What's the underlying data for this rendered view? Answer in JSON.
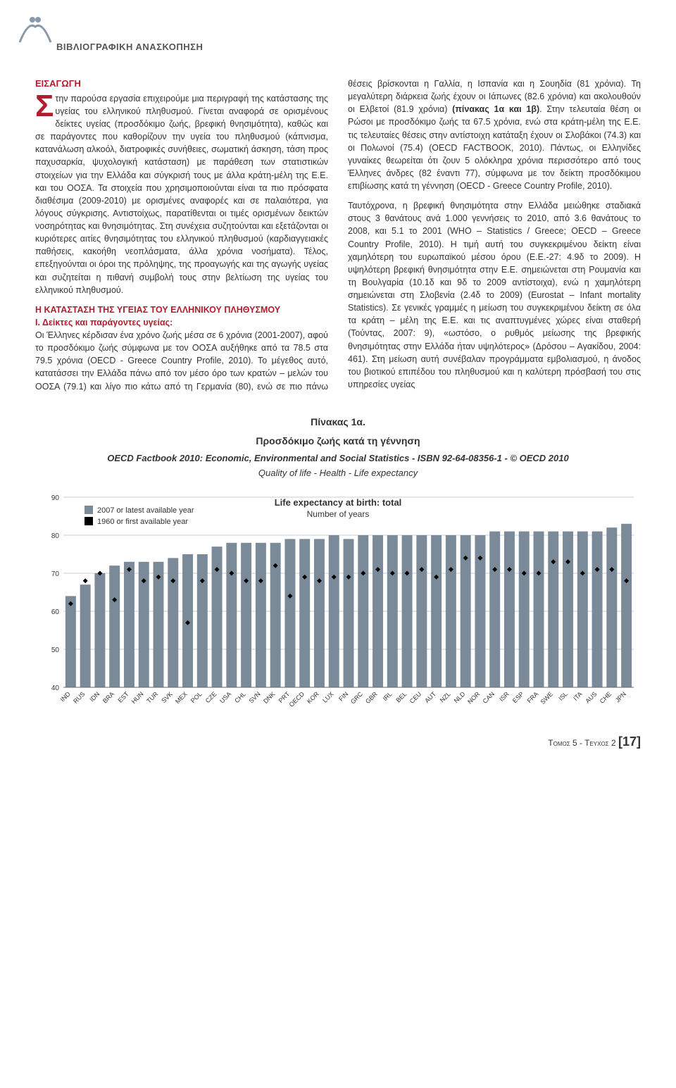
{
  "header": {
    "section_label": "ΒΙΒΛΙΟΓΡΑΦΙΚΗ ΑΝΑΣΚΟΠΗΣΗ"
  },
  "content": {
    "intro_heading": "ΕΙΣΑΓΩΓΗ",
    "para1": "την παρούσα εργασία επιχειρούμε μια περιγραφή της κατάστασης της υγείας του ελληνικού πληθυσμού. Γίνεται αναφορά σε ορισμένους δείκτες υγείας (προσδόκιμο ζωής, βρεφική θνησιμότητα), καθώς και σε παράγοντες που καθορίζουν την υγεία του πληθυσμού (κάπνισμα, κατανάλωση αλκοόλ, διατροφικές συνήθειες, σωματική άσκηση, τάση προς παχυσαρκία, ψυχολογική κατάσταση) με παράθεση των στατιστικών στοιχείων για την Ελλάδα και σύγκρισή τους με άλλα κράτη-μέλη της Ε.Ε. και του ΟΟΣΑ. Τα στοιχεία που χρησιμοποιούνται είναι τα πιο πρόσφατα διαθέσιμα (2009-2010) με ορισμένες αναφορές και σε παλαιότερα, για λόγους σύγκρισης. Αντιστοίχως, παρατίθενται οι τιμές ορισμένων δεικτών νοσηρότητας και θνησιμότητας. Στη συνέχεια συζητούνται και εξετάζονται οι κυριότερες αιτίες θνησιμότητας του ελληνικού πληθυσμού (καρδιαγγειακές παθήσεις, κακοήθη νεοπλάσματα, άλλα χρόνια νοσήματα). Τέλος, επεξηγούνται οι όροι της πρόληψης, της προαγωγής και της αγωγής υγείας και συζητείται η πιθανή συμβολή τους στην βελτίωση της υγείας του ελληνικού πληθυσμού.",
    "subheading1": "Η ΚΑΤΑΣΤΑΣΗ ΤΗΣ ΥΓΕΙΑΣ ΤΟΥ ΕΛΛΗΝΙΚΟΥ ΠΛΗΘΥΣΜΟΥ",
    "subheading1_line2": "Ι. Δείκτες και παράγοντες υγείας:",
    "para2": "Οι Έλληνες κέρδισαν ένα χρόνο ζωής μέσα σε 6 χρόνια (2001-2007), αφού το προσδόκιμο ζωής σύμφωνα με τον ΟΟΣΑ αυξήθηκε από τα 78.5 στα 79.5 χρόνια (OECD - Greece Country Profile, 2010). Το μέγεθος αυτό, κατατάσσει την Ελλάδα πάνω από τον μέσο όρο των κρατών – μελών του ΟΟΣΑ (79.1) και λίγο πιο κάτω από τη Γερμανία (80), ενώ σε πιο πάνω θέσεις βρίσκονται η Γαλλία, η Ισπανία και η Σουηδία (81 χρόνια). Τη μεγαλύτερη διάρκεια ζωής έχουν οι Ιάπωνες (82.6 χρόνια) και ακολουθούν οι Ελβετοί (81.9 χρόνια) ",
    "bold_inline1": "(πίνακας 1α και 1β)",
    "para2_cont": ". Στην τελευταία θέση οι Ρώσοι με προσδόκιμο ζωής τα 67.5 χρόνια, ενώ στα κράτη-μέλη της Ε.Ε. τις τελευταίες θέσεις στην αντίστοιχη κατάταξη έχουν οι Σλοβάκοι (74.3) και οι Πολωνοί (75.4) (OECD FACTBOOK, 2010). Πάντως, οι Ελληνίδες γυναίκες θεωρείται ότι ζουν 5 ολόκληρα χρόνια περισσότερο από τους Έλληνες άνδρες (82 έναντι 77), σύμφωνα με τον δείκτη προσδόκιμου επιβίωσης κατά τη γέννηση (OECD - Greece Country Profile, 2010).",
    "para3": "Ταυτόχρονα, η βρεφική θνησιμότητα στην Ελλάδα μειώθηκε σταδιακά στους 3 θανάτους ανά 1.000 γεννήσεις το 2010, από 3.6 θανάτους το 2008, και 5.1 το 2001 (WHO – Statistics / Greece; OECD – Greece Country Profile, 2010). Η τιμή αυτή του συγκεκριμένου δείκτη είναι χαμηλότερη του ευρωπαϊκού μέσου όρου (Ε.Ε.-27: 4.9δ το 2009). Η υψηλότερη βρεφική θνησιμότητα στην Ε.Ε. σημειώνεται στη Ρουμανία και τη Βουλγαρία (10.1δ και 9δ το 2009 αντίστοιχα), ενώ η χαμηλότερη σημειώνεται στη Σλοβενία (2.4δ το 2009) (Eurostat – Infant mortality Statistics). Σε γενικές γραμμές η μείωση του συγκεκριμένου δείκτη σε όλα τα κράτη – μέλη της Ε.Ε. και τις αναπτυγμένες χώρες είναι σταθερή (Τούντας, 2007: 9), «ωστόσο, ο ρυθμός μείωσης της βρεφικής θνησιμότητας στην Ελλάδα ήταν υψηλότερος» (Δρόσου – Αγακίδου, 2004: 461). Στη μείωση αυτή συνέβαλαν προγράμματα εμβολιασμού, η άνοδος του βιοτικού επιπέδου του πληθυσμού και η καλύτερη πρόσβασή του στις υπηρεσίες υγείας"
  },
  "table": {
    "title": "Πίνακας 1α.",
    "subtitle": "Προσδόκιμο ζωής κατά τη γέννηση",
    "citation": "OECD Factbook 2010: Economic, Environmental and Social Statistics - ISBN 92-64-08356-1 - © OECD 2010",
    "note": "Quality of life - Health - Life expectancy",
    "chart_title": "Life expectancy at birth: total",
    "chart_subtitle": "Number of years",
    "legend1": "2007 or latest available year",
    "legend2": "1960 or first available year"
  },
  "chart": {
    "type": "bar",
    "background_color": "#ffffff",
    "bar_color_2007": "#7a8a99",
    "marker_color_1960": "#000000",
    "marker_shape": "diamond",
    "grid_color": "#cccccc",
    "ylim": [
      40,
      90
    ],
    "ytick_step": 10,
    "yticks": [
      40,
      50,
      60,
      70,
      80,
      90
    ],
    "axis_fontsize": 10,
    "label_fontsize": 9,
    "categories": [
      "IND",
      "RUS",
      "IDN",
      "BRA",
      "EST",
      "HUN",
      "TUR",
      "SVK",
      "MEX",
      "POL",
      "CZE",
      "USA",
      "CHL",
      "SVN",
      "DNK",
      "PRT",
      "OECD",
      "KOR",
      "LUX",
      "FIN",
      "GRC",
      "GBR",
      "IRL",
      "BEL",
      "CEU",
      "AUT",
      "NZL",
      "NLD",
      "NOR",
      "CAN",
      "ISR",
      "ESP",
      "FRA",
      "SWE",
      "ISL",
      "ITA",
      "AUS",
      "CHE",
      "JPN"
    ],
    "values_2007": [
      64,
      67,
      70,
      72,
      73,
      73,
      73,
      74,
      75,
      75,
      77,
      78,
      78,
      78,
      78,
      79,
      79,
      79,
      80,
      79,
      80,
      80,
      80,
      80,
      80,
      80,
      80,
      80,
      80,
      81,
      81,
      81,
      81,
      81,
      81,
      81,
      81,
      82,
      83
    ],
    "values_1960": [
      62,
      68,
      70,
      63,
      71,
      68,
      69,
      68,
      57,
      68,
      71,
      70,
      68,
      68,
      72,
      64,
      69,
      68,
      69,
      69,
      70,
      71,
      70,
      70,
      71,
      69,
      71,
      74,
      74,
      71,
      71,
      70,
      70,
      73,
      73,
      70,
      71,
      71,
      68
    ]
  },
  "footer": {
    "volume": "Τομος 5 - Τευχος 2",
    "page": "[17]"
  }
}
